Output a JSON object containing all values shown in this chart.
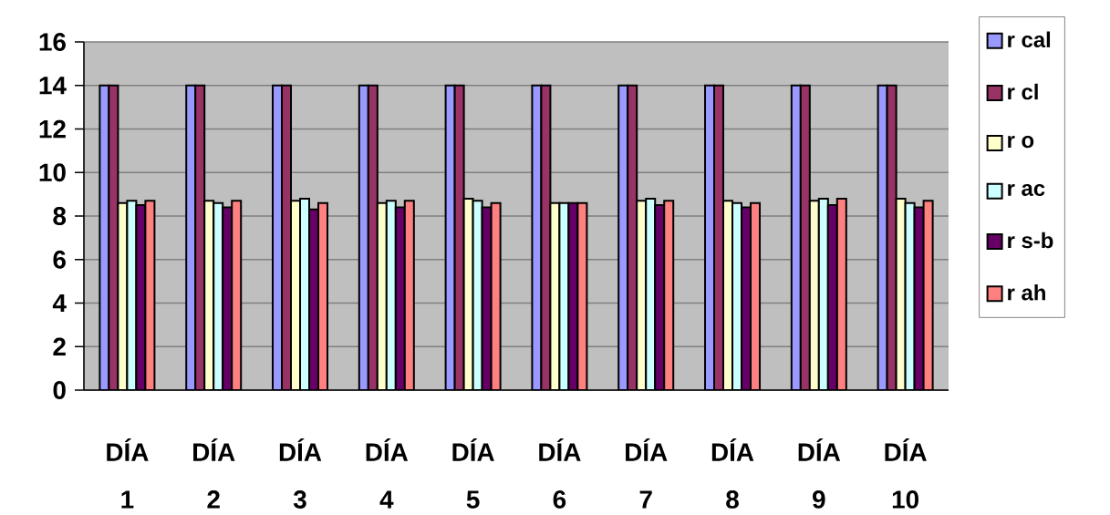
{
  "chart_data": {
    "type": "bar",
    "categories": [
      "DÍA 1",
      "DÍA 2",
      "DÍA 3",
      "DÍA 4",
      "DÍA 5",
      "DÍA 6",
      "DÍA 7",
      "DÍA 8",
      "DÍA 9",
      "DÍA 10"
    ],
    "series": [
      {
        "name": "r cal",
        "color": "#9999ff",
        "values": [
          14,
          14,
          14,
          14,
          14,
          14,
          14,
          14,
          14,
          14
        ]
      },
      {
        "name": "r cl",
        "color": "#993366",
        "values": [
          14,
          14,
          14,
          14,
          14,
          14,
          14,
          14,
          14,
          14
        ]
      },
      {
        "name": "r o",
        "color": "#ffffcc",
        "values": [
          8.6,
          8.7,
          8.7,
          8.6,
          8.8,
          8.6,
          8.7,
          8.7,
          8.7,
          8.8
        ]
      },
      {
        "name": "r ac",
        "color": "#ccffff",
        "values": [
          8.7,
          8.6,
          8.8,
          8.7,
          8.7,
          8.6,
          8.8,
          8.6,
          8.8,
          8.6
        ]
      },
      {
        "name": "r s-b",
        "color": "#660066",
        "values": [
          8.5,
          8.4,
          8.3,
          8.4,
          8.4,
          8.6,
          8.5,
          8.4,
          8.5,
          8.4
        ]
      },
      {
        "name": "r ah",
        "color": "#ff8080",
        "values": [
          8.7,
          8.7,
          8.6,
          8.7,
          8.6,
          8.6,
          8.7,
          8.6,
          8.8,
          8.7
        ]
      }
    ],
    "ylim": [
      0,
      16
    ],
    "yticks": [
      0,
      2,
      4,
      6,
      8,
      10,
      12,
      14,
      16
    ],
    "grid": "y",
    "legend": "right"
  }
}
